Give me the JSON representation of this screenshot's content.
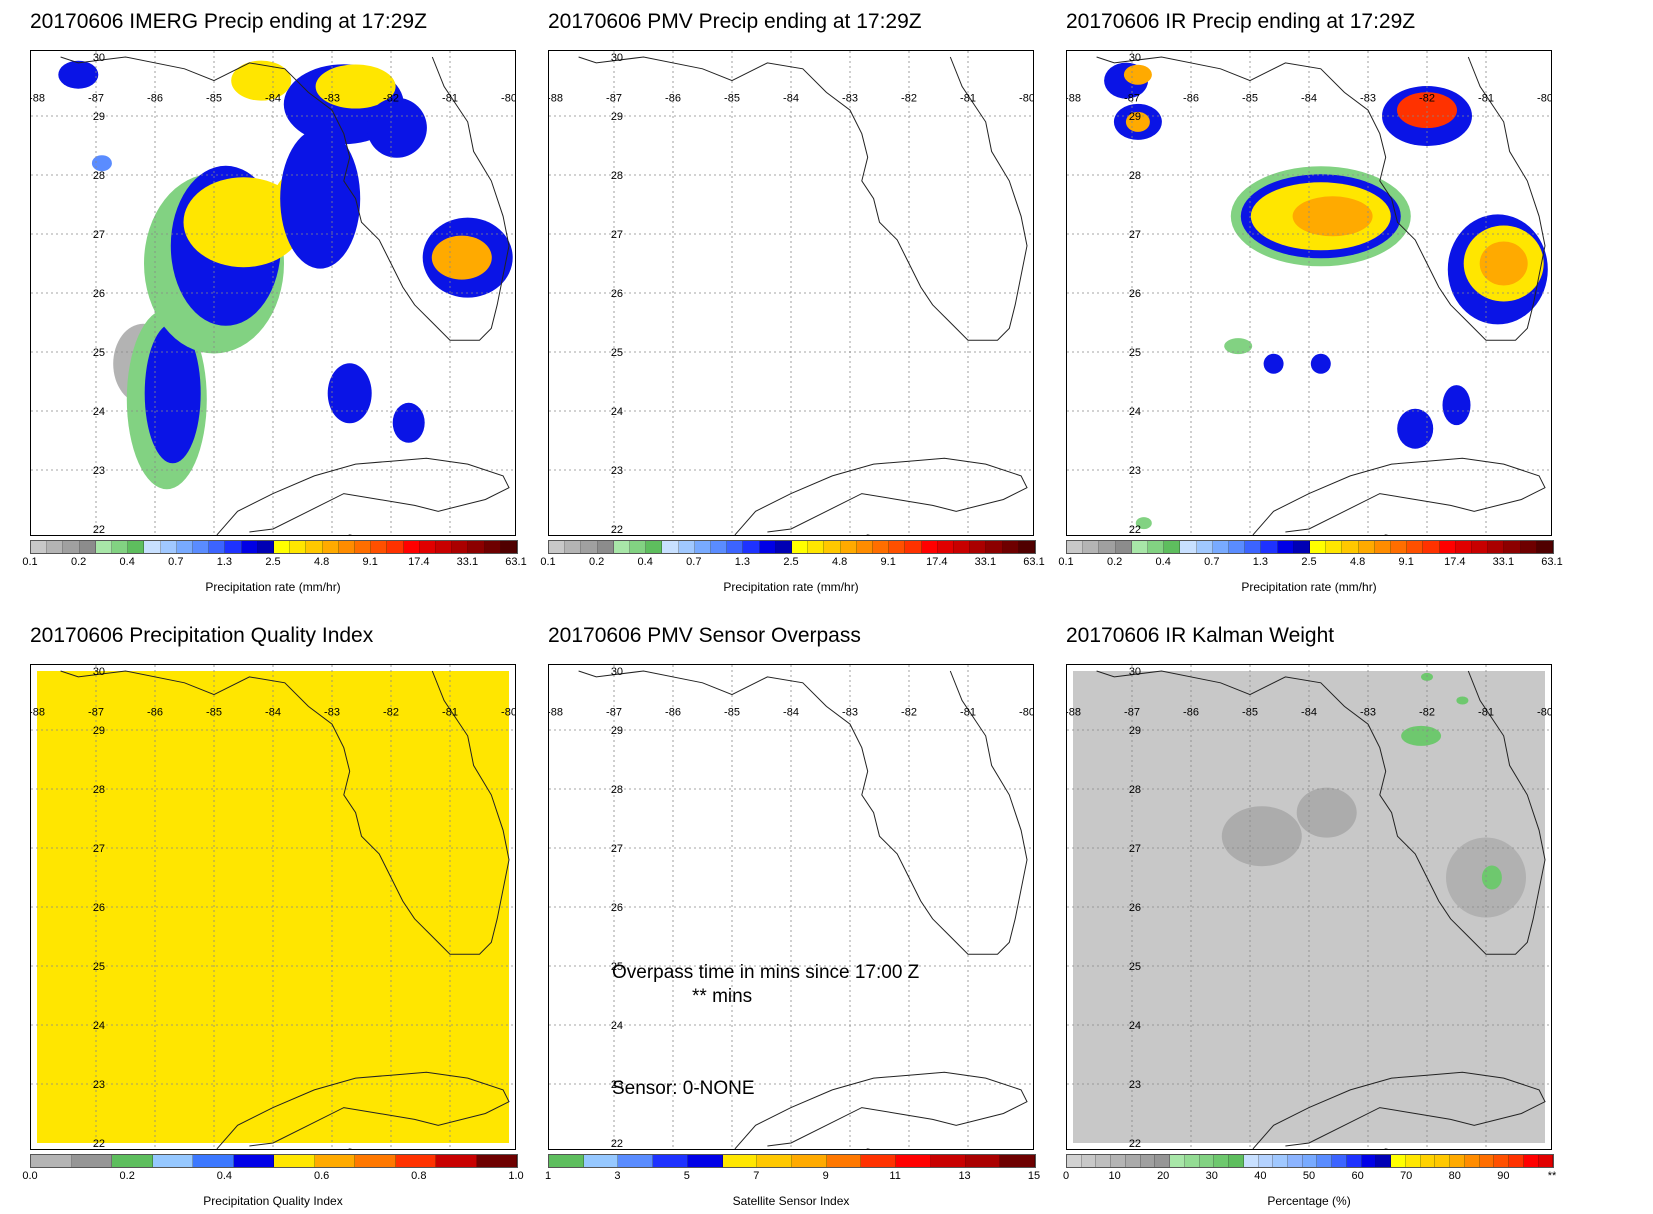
{
  "panels": [
    {
      "id": "imerg",
      "title": "20170606 IMERG Precip ending at 17:29Z",
      "cbar": {
        "label": "Precipitation rate (mm/hr)",
        "ticks": [
          "0.1",
          "0.2",
          "0.4",
          "0.7",
          "1.3",
          "2.5",
          "4.8",
          "9.1",
          "17.4",
          "33.1",
          "63.1"
        ],
        "colors": [
          "#c8c8c8",
          "#b4b4b4",
          "#a0a0a0",
          "#8c8c8c",
          "#a8e6a8",
          "#82d282",
          "#5ebe5e",
          "#c8e0ff",
          "#a0c8ff",
          "#78aaff",
          "#5a8cff",
          "#3c64ff",
          "#1e32ff",
          "#0000e6",
          "#0000b4",
          "#ffff00",
          "#ffe600",
          "#ffc800",
          "#ffaa00",
          "#ff8c00",
          "#ff6e00",
          "#ff5000",
          "#ff3200",
          "#ff0000",
          "#e10000",
          "#c80000",
          "#aa0000",
          "#8c0000",
          "#6e0000",
          "#500000"
        ]
      }
    },
    {
      "id": "pmv",
      "title": "20170606 PMV Precip ending at 17:29Z",
      "cbar": {
        "label": "Precipitation rate (mm/hr)",
        "ticks": [
          "0.1",
          "0.2",
          "0.4",
          "0.7",
          "1.3",
          "2.5",
          "4.8",
          "9.1",
          "17.4",
          "33.1",
          "63.1"
        ],
        "colors": [
          "#c8c8c8",
          "#b4b4b4",
          "#a0a0a0",
          "#8c8c8c",
          "#a8e6a8",
          "#82d282",
          "#5ebe5e",
          "#c8e0ff",
          "#a0c8ff",
          "#78aaff",
          "#5a8cff",
          "#3c64ff",
          "#1e32ff",
          "#0000e6",
          "#0000b4",
          "#ffff00",
          "#ffe600",
          "#ffc800",
          "#ffaa00",
          "#ff8c00",
          "#ff6e00",
          "#ff5000",
          "#ff3200",
          "#ff0000",
          "#e10000",
          "#c80000",
          "#aa0000",
          "#8c0000",
          "#6e0000",
          "#500000"
        ]
      }
    },
    {
      "id": "ir",
      "title": "20170606 IR Precip ending at 17:29Z",
      "cbar": {
        "label": "Precipitation rate (mm/hr)",
        "ticks": [
          "0.1",
          "0.2",
          "0.4",
          "0.7",
          "1.3",
          "2.5",
          "4.8",
          "9.1",
          "17.4",
          "33.1",
          "63.1"
        ],
        "colors": [
          "#c8c8c8",
          "#b4b4b4",
          "#a0a0a0",
          "#8c8c8c",
          "#a8e6a8",
          "#82d282",
          "#5ebe5e",
          "#c8e0ff",
          "#a0c8ff",
          "#78aaff",
          "#5a8cff",
          "#3c64ff",
          "#1e32ff",
          "#0000e6",
          "#0000b4",
          "#ffff00",
          "#ffe600",
          "#ffc800",
          "#ffaa00",
          "#ff8c00",
          "#ff6e00",
          "#ff5000",
          "#ff3200",
          "#ff0000",
          "#e10000",
          "#c80000",
          "#aa0000",
          "#8c0000",
          "#6e0000",
          "#500000"
        ]
      }
    },
    {
      "id": "pqi",
      "title": "20170606 Precipitation Quality Index",
      "fill_color": "#ffe600",
      "cbar": {
        "label": "Precipitation Quality Index",
        "ticks": [
          "0.0",
          "0.2",
          "0.4",
          "0.6",
          "0.8",
          "1.0"
        ],
        "colors": [
          "#b4b4b4",
          "#969696",
          "#5ebe5e",
          "#96c8ff",
          "#3c78ff",
          "#0000e6",
          "#ffe600",
          "#ffaa00",
          "#ff7800",
          "#ff3200",
          "#c80000",
          "#6e0000"
        ]
      }
    },
    {
      "id": "sensor",
      "title": "20170606 PMV Sensor Overpass",
      "overpass_text": "Overpass time in mins since 17:00 Z",
      "overpass_value": "** mins",
      "sensor_text": "Sensor:   0-NONE",
      "cbar": {
        "label": "Satellite Sensor Index",
        "ticks": [
          "1",
          "3",
          "5",
          "7",
          "9",
          "11",
          "13",
          "15"
        ],
        "colors": [
          "#5ebe5e",
          "#96c8ff",
          "#5a8cff",
          "#1e32ff",
          "#0000e6",
          "#ffe600",
          "#ffc800",
          "#ffaa00",
          "#ff7800",
          "#ff3200",
          "#ff0000",
          "#c80000",
          "#aa0000",
          "#6e0000"
        ]
      }
    },
    {
      "id": "kalman",
      "title": "20170606 IR Kalman Weight",
      "fill_color": "#c8c8c8",
      "cbar": {
        "label": "Percentage (%)",
        "ticks": [
          "0",
          "10",
          "20",
          "30",
          "40",
          "50",
          "60",
          "70",
          "80",
          "90",
          "**"
        ],
        "colors": [
          "#d2d2d2",
          "#c8c8c8",
          "#bebebe",
          "#b4b4b4",
          "#aaaaaa",
          "#a0a0a0",
          "#969696",
          "#a8e6a8",
          "#94dc94",
          "#82d282",
          "#6ec86e",
          "#5ebe5e",
          "#c8e0ff",
          "#b4d2ff",
          "#a0c8ff",
          "#8cb4ff",
          "#78aaff",
          "#5a8cff",
          "#3c64ff",
          "#1e32ff",
          "#0000e6",
          "#0000b4",
          "#ffff00",
          "#ffe600",
          "#ffd200",
          "#ffc800",
          "#ffaa00",
          "#ff8c00",
          "#ff6e00",
          "#ff5000",
          "#ff3200",
          "#ff0000",
          "#e10000"
        ]
      }
    }
  ],
  "map": {
    "lon_labels": [
      "-88",
      "-87",
      "-86",
      "-85",
      "-84",
      "-83",
      "-82",
      "-81",
      "-80"
    ],
    "lat_labels": [
      "30",
      "29",
      "28",
      "27",
      "26",
      "25",
      "24",
      "23",
      "22"
    ]
  }
}
